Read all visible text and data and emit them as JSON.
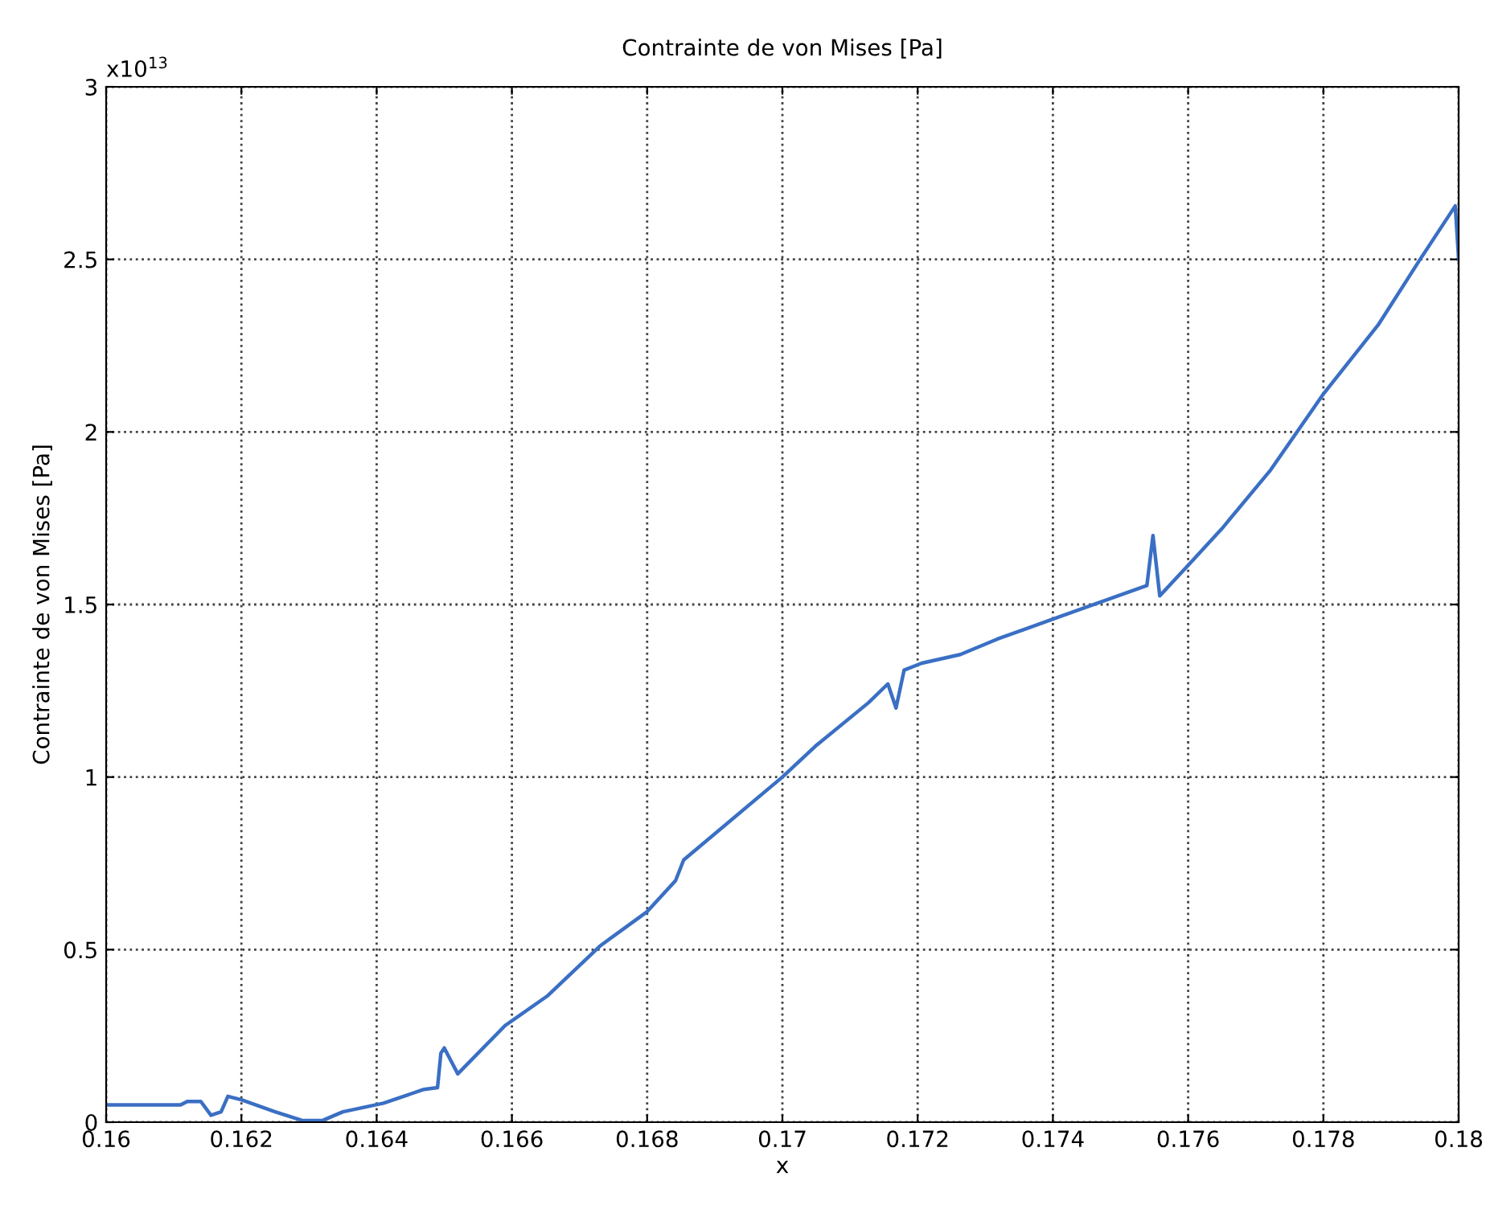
{
  "chart_data": {
    "type": "line",
    "title": "Contrainte de von Mises [Pa]",
    "xlabel": "x",
    "ylabel": "Contrainte de von Mises [Pa]",
    "annotations": [
      "x10$^{13}$"
    ],
    "series": [
      {
        "color": "#3a6fc4",
        "x": [
          0.16,
          0.1611,
          0.1612,
          0.1614,
          0.16155,
          0.1617,
          0.1618,
          0.162,
          0.1625,
          0.1629,
          0.1632,
          0.1635,
          0.1641,
          0.1647,
          0.1649,
          0.16495,
          0.165,
          0.1652,
          0.1659,
          0.16652,
          0.1673,
          0.168,
          0.16842,
          0.16854,
          0.17,
          0.17049,
          0.17127,
          0.17156,
          0.17168,
          0.1718,
          0.17206,
          0.17263,
          0.17318,
          0.17396,
          0.17539,
          0.17548,
          0.17558,
          0.17603,
          0.1765,
          0.17722,
          0.178,
          0.17881,
          0.17943,
          0.17995,
          0.18
        ],
        "values": [
          0.05,
          0.05,
          0.06,
          0.06,
          0.02,
          0.03,
          0.075,
          0.065,
          0.03,
          0.005,
          0.005,
          0.03,
          0.055,
          0.095,
          0.1,
          0.2,
          0.215,
          0.14,
          0.28,
          0.365,
          0.51,
          0.61,
          0.7,
          0.76,
          1.0,
          1.09,
          1.215,
          1.27,
          1.2,
          1.31,
          1.33,
          1.355,
          1.4,
          1.455,
          1.555,
          1.7,
          1.525,
          1.62,
          1.72,
          1.89,
          2.11,
          2.31,
          2.5,
          2.655,
          2.5
        ]
      }
    ],
    "xlim": [
      0.16,
      0.18
    ],
    "xticks": [
      {
        "value": 0.16,
        "label": "0.16"
      },
      {
        "value": 0.162,
        "label": "0.162"
      },
      {
        "value": 0.164,
        "label": "0.164"
      },
      {
        "value": 0.166,
        "label": "0.166"
      },
      {
        "value": 0.168,
        "label": "0.168"
      },
      {
        "value": 0.17,
        "label": "0.17"
      },
      {
        "value": 0.172,
        "label": "0.172"
      },
      {
        "value": 0.174,
        "label": "0.174"
      },
      {
        "value": 0.176,
        "label": "0.176"
      },
      {
        "value": 0.178,
        "label": "0.178"
      },
      {
        "value": 0.18,
        "label": "0.18"
      }
    ],
    "ylim": [
      0,
      3
    ],
    "yticks": [
      0,
      0.5,
      1,
      1.5,
      2,
      2.5,
      3
    ],
    "grid": true,
    "line_style": "solid",
    "marker": "none"
  }
}
